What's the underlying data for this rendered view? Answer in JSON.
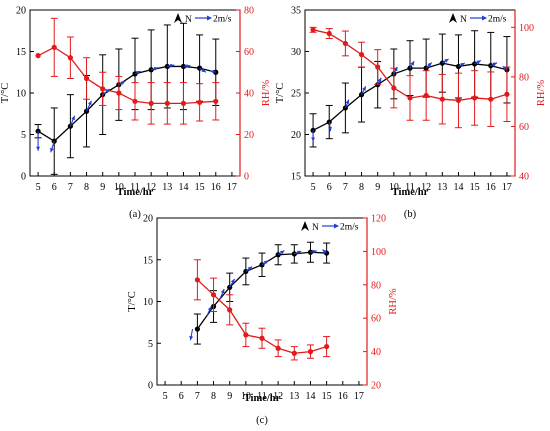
{
  "colors": {
    "temp": "#000000",
    "rh": "#e31a1c",
    "wind": "#1f3fd6",
    "axis": "#000000"
  },
  "chart_data": [
    {
      "type": "line",
      "panel_label": "(a)",
      "xlabel": "Time/hr",
      "ylabel_left": "T/°C",
      "ylabel_right": "RH/%",
      "x_ticks": [
        "5",
        "6",
        "7",
        "8",
        "9",
        "10",
        "11",
        "12",
        "13",
        "14",
        "15",
        "16",
        "17"
      ],
      "y_left_ticks": [
        "0",
        "5",
        "10",
        "15",
        "20"
      ],
      "y_right_ticks": [
        "0",
        "20",
        "40",
        "60",
        "80"
      ],
      "xlim": [
        4.5,
        17.5
      ],
      "ylim_left": [
        0,
        20
      ],
      "ylim_right": [
        0,
        80
      ],
      "legend": {
        "north_label": "N",
        "wind_label": "2m/s"
      },
      "series": [
        {
          "name": "T",
          "axis": "left",
          "x": [
            5,
            6,
            7,
            8,
            9,
            10,
            11,
            12,
            13,
            14,
            15,
            16
          ],
          "y": [
            5.4,
            4.2,
            6.0,
            7.8,
            9.8,
            11.0,
            12.3,
            12.8,
            13.2,
            13.2,
            13.0,
            12.5
          ],
          "err": [
            0.8,
            4.0,
            3.8,
            4.3,
            4.8,
            4.3,
            4.3,
            4.8,
            5.0,
            5.2,
            4.0,
            4.0
          ]
        },
        {
          "name": "RH",
          "axis": "right",
          "x": [
            5,
            6,
            7,
            8,
            9,
            10,
            11,
            12,
            13,
            14,
            15,
            16
          ],
          "y": [
            58,
            62,
            57,
            47,
            42,
            40,
            36,
            35,
            35,
            35,
            35.5,
            36
          ],
          "err": [
            0,
            14,
            10,
            10,
            8,
            8,
            9,
            10,
            10,
            10,
            9,
            9
          ]
        }
      ],
      "wind_vectors": [
        {
          "x": 5,
          "u": 0.0,
          "v": -2.8
        },
        {
          "x": 6,
          "u": -0.5,
          "v": -1.6
        },
        {
          "x": 7,
          "u": 0.6,
          "v": 1.5
        },
        {
          "x": 8,
          "u": 0.7,
          "v": 1.5
        },
        {
          "x": 9,
          "u": 1.0,
          "v": 0.8
        },
        {
          "x": 10,
          "u": 0.9,
          "v": 0.5
        },
        {
          "x": 11,
          "u": 0.8,
          "v": 0.4
        },
        {
          "x": 12,
          "u": 1.0,
          "v": 0.3
        },
        {
          "x": 13,
          "u": 1.0,
          "v": 0.2
        },
        {
          "x": 14,
          "u": 1.0,
          "v": 0.1
        },
        {
          "x": 15,
          "u": 0.9,
          "v": -0.6
        },
        {
          "x": 16,
          "u": -0.8,
          "v": 0.2
        }
      ]
    },
    {
      "type": "line",
      "panel_label": "(b)",
      "xlabel": "Time/hr",
      "ylabel_left": "T/°C",
      "ylabel_right": "RH/%",
      "x_ticks": [
        "5",
        "6",
        "7",
        "8",
        "9",
        "10",
        "11",
        "12",
        "13",
        "14",
        "15",
        "16",
        "17"
      ],
      "y_left_ticks": [
        "15",
        "20",
        "25",
        "30",
        "35"
      ],
      "y_right_ticks": [
        "40",
        "60",
        "80",
        "100"
      ],
      "xlim": [
        4.5,
        17.5
      ],
      "ylim_left": [
        15,
        35
      ],
      "ylim_right": [
        40,
        107
      ],
      "legend": {
        "north_label": "N",
        "wind_label": "2m/s"
      },
      "series": [
        {
          "name": "T",
          "axis": "left",
          "x": [
            5,
            6,
            7,
            8,
            9,
            10,
            11,
            12,
            13,
            14,
            15,
            16,
            17
          ],
          "y": [
            20.5,
            21.5,
            23.2,
            24.8,
            26.0,
            27.3,
            28.0,
            28.0,
            28.6,
            28.2,
            28.5,
            28.3,
            27.8
          ],
          "err": [
            2.0,
            2.0,
            3.0,
            3.3,
            2.8,
            3.0,
            3.3,
            3.5,
            3.5,
            3.8,
            4.0,
            4.0,
            4.0
          ]
        },
        {
          "name": "RH",
          "axis": "right",
          "x": [
            5,
            6,
            7,
            8,
            9,
            10,
            11,
            12,
            13,
            14,
            15,
            16,
            17
          ],
          "y": [
            99,
            97.5,
            93.5,
            89,
            84,
            75.5,
            71.5,
            72.5,
            71,
            70.5,
            71.5,
            71,
            73
          ],
          "err": [
            1,
            2,
            5,
            5,
            7,
            8,
            9,
            10,
            10,
            11,
            11,
            11,
            11
          ]
        }
      ],
      "wind_vectors": [
        {
          "x": 5,
          "u": 0.0,
          "v": -1.6
        },
        {
          "x": 6,
          "u": 0.2,
          "v": -1.3
        },
        {
          "x": 7,
          "u": 0.5,
          "v": 1.2
        },
        {
          "x": 8,
          "u": 0.6,
          "v": 1.2
        },
        {
          "x": 9,
          "u": 0.5,
          "v": 1.0
        },
        {
          "x": 10,
          "u": 0.5,
          "v": 1.0
        },
        {
          "x": 11,
          "u": 0.6,
          "v": 1.0
        },
        {
          "x": 12,
          "u": 0.8,
          "v": 0.8
        },
        {
          "x": 13,
          "u": 0.9,
          "v": 0.6
        },
        {
          "x": 14,
          "u": 0.9,
          "v": 0.5
        },
        {
          "x": 15,
          "u": 0.9,
          "v": 0.5
        },
        {
          "x": 16,
          "u": 0.9,
          "v": 0.4
        },
        {
          "x": 17,
          "u": -0.6,
          "v": 0.5
        }
      ]
    },
    {
      "type": "line",
      "panel_label": "(c)",
      "xlabel": "Time/hr",
      "ylabel_left": "T/°C",
      "ylabel_right": "RH/%",
      "x_ticks": [
        "5",
        "6",
        "7",
        "8",
        "9",
        "10",
        "11",
        "12",
        "13",
        "14",
        "15",
        "16",
        "17"
      ],
      "y_left_ticks": [
        "0",
        "5",
        "10",
        "15",
        "20"
      ],
      "y_right_ticks": [
        "20",
        "40",
        "60",
        "80",
        "100",
        "120"
      ],
      "xlim": [
        4.5,
        17.5
      ],
      "ylim_left": [
        0,
        20
      ],
      "ylim_right": [
        20,
        120
      ],
      "legend": {
        "north_label": "N",
        "wind_label": "2m/s"
      },
      "series": [
        {
          "name": "T",
          "axis": "left",
          "x": [
            7,
            8,
            9,
            10,
            11,
            12,
            13,
            14,
            15
          ],
          "y": [
            6.7,
            9.4,
            11.7,
            13.6,
            14.4,
            15.6,
            15.7,
            15.9,
            15.8
          ],
          "err": [
            1.8,
            1.9,
            1.7,
            1.6,
            1.4,
            1.2,
            1.1,
            1.2,
            1.2
          ]
        },
        {
          "name": "RH",
          "axis": "right",
          "x": [
            7,
            8,
            9,
            10,
            11,
            12,
            13,
            14,
            15
          ],
          "y": [
            83,
            74,
            65,
            50,
            48,
            42,
            39,
            40,
            43
          ],
          "err": [
            12,
            10,
            9,
            7,
            6,
            5,
            4,
            4,
            6
          ]
        }
      ],
      "wind_vectors": [
        {
          "x": 6.7,
          "u": -0.3,
          "v": -1.6
        },
        {
          "x": 7.6,
          "u": 0.6,
          "v": 1.3
        },
        {
          "x": 8.4,
          "u": 0.6,
          "v": 1.4
        },
        {
          "x": 9.0,
          "u": 0.7,
          "v": 1.2
        },
        {
          "x": 10,
          "u": 0.9,
          "v": 0.7
        },
        {
          "x": 11,
          "u": 0.9,
          "v": 0.6
        },
        {
          "x": 12,
          "u": 0.9,
          "v": 0.6
        },
        {
          "x": 13,
          "u": 1.0,
          "v": 0.4
        },
        {
          "x": 14,
          "u": 0.9,
          "v": 0.2
        },
        {
          "x": 15,
          "u": -0.6,
          "v": 0.5
        }
      ]
    }
  ]
}
